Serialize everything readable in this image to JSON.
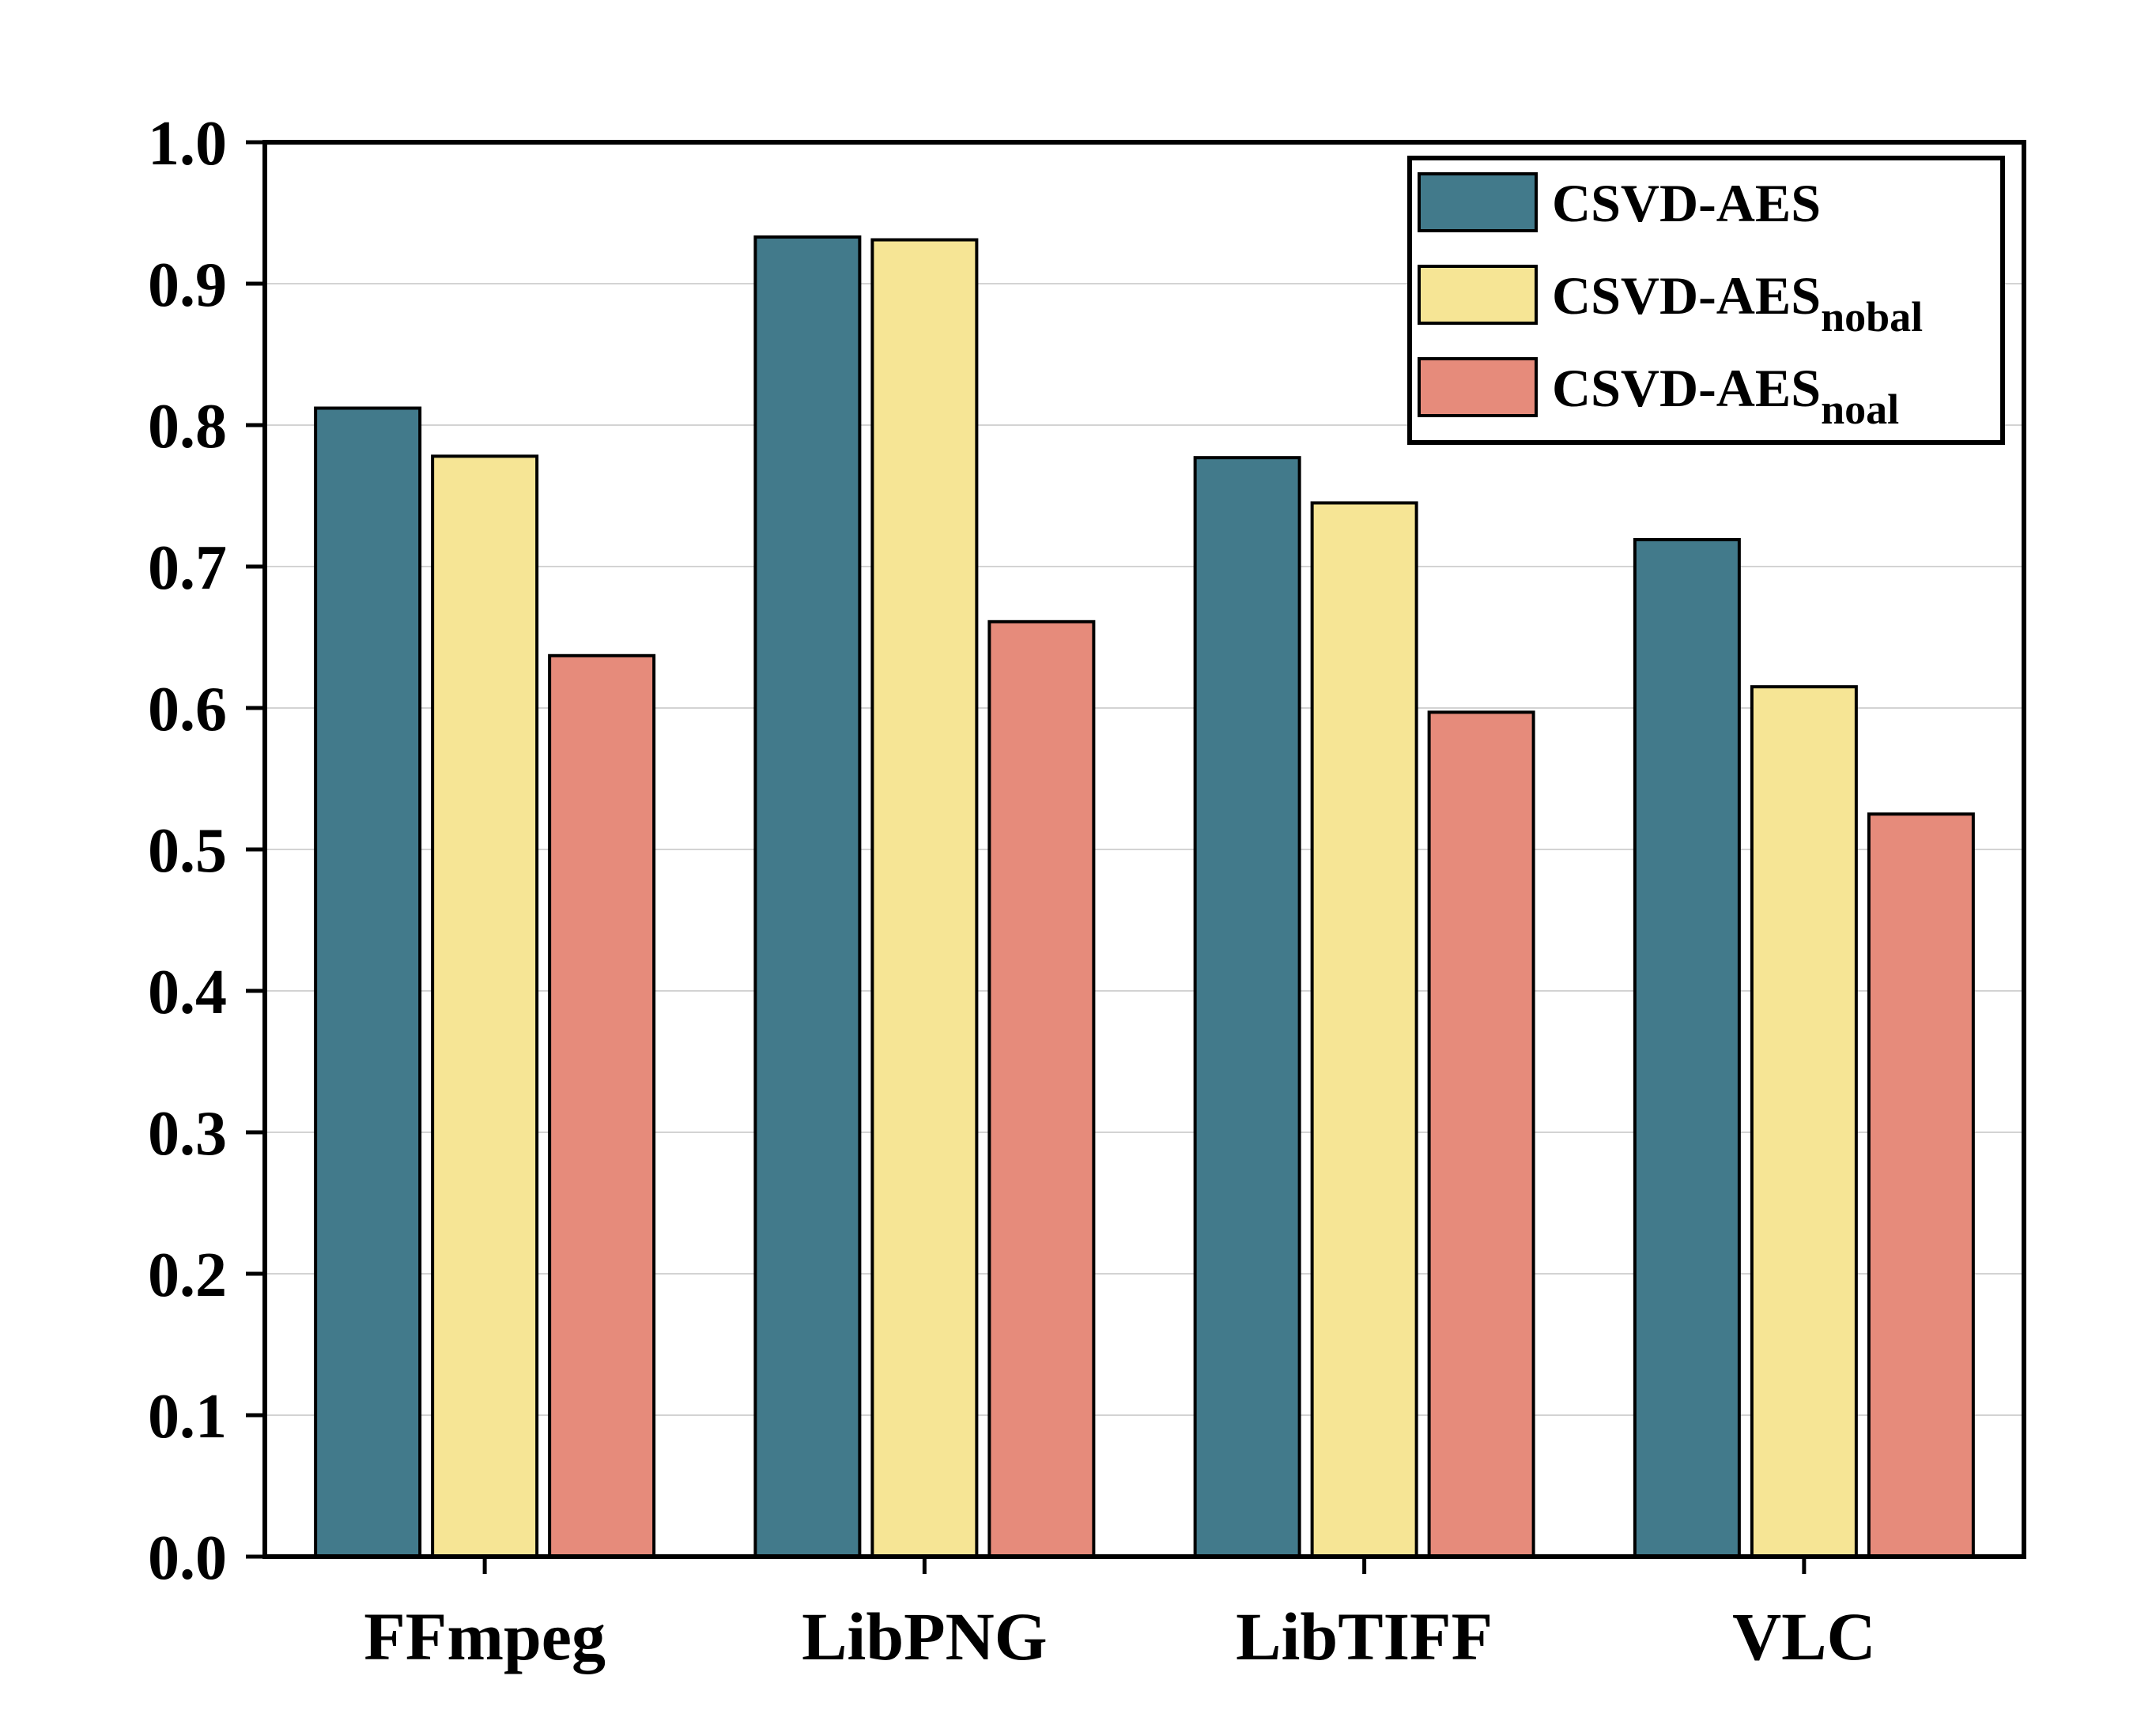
{
  "chart_data": {
    "type": "bar",
    "categories": [
      "FFmpeg",
      "LibPNG",
      "LibTIFF",
      "VLC"
    ],
    "series": [
      {
        "name": "CSVD-AES",
        "name_main": "CSVD-AES",
        "name_sub": "",
        "color": "#427a8b",
        "values": [
          0.812,
          0.933,
          0.777,
          0.719
        ]
      },
      {
        "name": "CSVD-AESnobal",
        "name_main": "CSVD-AES",
        "name_sub": "nobal",
        "color": "#f6e595",
        "values": [
          0.778,
          0.931,
          0.745,
          0.615
        ]
      },
      {
        "name": "CSVD-AESnoal",
        "name_main": "CSVD-AES",
        "name_sub": "noal",
        "color": "#e68b7b",
        "values": [
          0.637,
          0.661,
          0.597,
          0.525
        ]
      }
    ],
    "y_ticks": [
      "0.0",
      "0.1",
      "0.2",
      "0.3",
      "0.4",
      "0.5",
      "0.6",
      "0.7",
      "0.8",
      "0.9",
      "1.0"
    ],
    "ylim": [
      0,
      1.0
    ],
    "title": "",
    "xlabel": "",
    "ylabel": "",
    "grid": true,
    "legend_position": "top-right"
  }
}
